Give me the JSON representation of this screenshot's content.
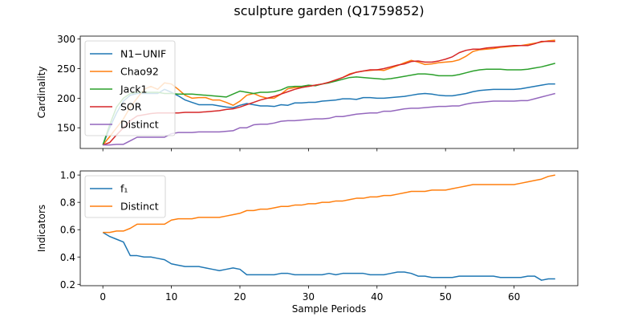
{
  "figure": {
    "title": "sculpture garden (Q1759852)"
  },
  "chart_data": [
    {
      "type": "line",
      "title": "",
      "xlabel": "",
      "ylabel": "Cardinality",
      "xlim": [
        -3.3,
        69.3
      ],
      "ylim": [
        115,
        305
      ],
      "xticks": [
        0,
        10,
        20,
        30,
        40,
        50,
        60
      ],
      "yticks": [
        150,
        200,
        250,
        300
      ],
      "show_xticklabels": false,
      "grid": false,
      "legend": "upper-left",
      "series": [
        {
          "name": "N1−UNIF",
          "color": "#1f77b4",
          "x_start": 0,
          "values": [
            121,
            150,
            175,
            195,
            205,
            208,
            208,
            208,
            208,
            215,
            210,
            204,
            197,
            193,
            189,
            189,
            189,
            187,
            185,
            184,
            188,
            191,
            189,
            187,
            187,
            186,
            189,
            188,
            192,
            192,
            193,
            193,
            195,
            196,
            197,
            199,
            199,
            198,
            201,
            201,
            200,
            200,
            201,
            202,
            203,
            205,
            207,
            208,
            207,
            205,
            204,
            204,
            206,
            208,
            211,
            213,
            214,
            215,
            215,
            215,
            215,
            216,
            218,
            220,
            222,
            224,
            224
          ]
        },
        {
          "name": "Chao92",
          "color": "#ff7f0e",
          "x_start": 0,
          "values": [
            121,
            135,
            150,
            165,
            185,
            200,
            215,
            220,
            215,
            226,
            224,
            215,
            205,
            200,
            201,
            201,
            197,
            197,
            193,
            188,
            195,
            205,
            208,
            203,
            200,
            200,
            207,
            216,
            218,
            219,
            220,
            222,
            224,
            227,
            231,
            235,
            241,
            244,
            246,
            247,
            248,
            247,
            251,
            255,
            260,
            264,
            261,
            257,
            258,
            260,
            261,
            262,
            265,
            271,
            279,
            282,
            283,
            284,
            286,
            287,
            288,
            289,
            291,
            293,
            295,
            297,
            298
          ]
        },
        {
          "name": "Jack1",
          "color": "#2ca02c",
          "x_start": 0,
          "values": [
            121,
            155,
            185,
            200,
            208,
            210,
            210,
            210,
            210,
            208,
            208,
            207,
            207,
            207,
            206,
            205,
            204,
            203,
            202,
            207,
            212,
            210,
            208,
            210,
            210,
            211,
            214,
            219,
            220,
            220,
            222,
            221,
            224,
            226,
            229,
            232,
            235,
            236,
            235,
            234,
            233,
            232,
            233,
            235,
            237,
            239,
            241,
            241,
            240,
            238,
            238,
            238,
            240,
            243,
            246,
            248,
            249,
            249,
            249,
            248,
            248,
            248,
            249,
            251,
            253,
            256,
            259
          ]
        },
        {
          "name": "SOR",
          "color": "#d62728",
          "x_start": 0,
          "values": [
            121,
            125,
            138,
            150,
            162,
            170,
            172,
            174,
            175,
            175,
            175,
            175,
            176,
            176,
            176,
            177,
            178,
            179,
            181,
            182,
            185,
            189,
            193,
            197,
            200,
            203,
            207,
            211,
            215,
            218,
            220,
            222,
            224,
            227,
            231,
            235,
            240,
            244,
            246,
            248,
            248,
            250,
            253,
            256,
            258,
            262,
            263,
            261,
            261,
            263,
            266,
            270,
            277,
            281,
            283,
            283,
            285,
            286,
            287,
            288,
            289,
            289,
            289,
            292,
            296,
            296,
            296
          ]
        },
        {
          "name": "Distinct",
          "color": "#9467bd",
          "x_start": 0,
          "values": [
            121,
            121,
            122,
            122,
            128,
            134,
            134,
            134,
            134,
            134,
            140,
            142,
            142,
            142,
            143,
            143,
            143,
            143,
            144,
            145,
            150,
            150,
            155,
            156,
            156,
            158,
            161,
            162,
            162,
            163,
            164,
            165,
            165,
            166,
            169,
            169,
            171,
            173,
            174,
            175,
            175,
            178,
            178,
            180,
            182,
            183,
            183,
            184,
            185,
            186,
            186,
            187,
            187,
            190,
            192,
            193,
            194,
            195,
            195,
            195,
            195,
            196,
            196,
            199,
            202,
            205,
            208
          ]
        }
      ]
    },
    {
      "type": "line",
      "title": "",
      "xlabel": "Sample Periods",
      "ylabel": "Indicators",
      "xlim": [
        -3.3,
        69.3
      ],
      "ylim": [
        0.19,
        1.03
      ],
      "xticks": [
        0,
        10,
        20,
        30,
        40,
        50,
        60
      ],
      "yticks": [
        0.2,
        0.4,
        0.6,
        0.8,
        1.0
      ],
      "show_xticklabels": true,
      "grid": false,
      "legend": "upper-left",
      "series": [
        {
          "name": "f₁",
          "color": "#1f77b4",
          "x_start": 0,
          "values": [
            0.58,
            0.55,
            0.53,
            0.51,
            0.41,
            0.41,
            0.4,
            0.4,
            0.39,
            0.38,
            0.35,
            0.34,
            0.33,
            0.33,
            0.33,
            0.32,
            0.31,
            0.3,
            0.31,
            0.32,
            0.31,
            0.27,
            0.27,
            0.27,
            0.27,
            0.27,
            0.28,
            0.28,
            0.27,
            0.27,
            0.27,
            0.27,
            0.27,
            0.28,
            0.27,
            0.28,
            0.28,
            0.28,
            0.28,
            0.27,
            0.27,
            0.27,
            0.28,
            0.29,
            0.29,
            0.28,
            0.26,
            0.26,
            0.25,
            0.25,
            0.25,
            0.25,
            0.26,
            0.26,
            0.26,
            0.26,
            0.26,
            0.26,
            0.25,
            0.25,
            0.25,
            0.25,
            0.26,
            0.26,
            0.23,
            0.24,
            0.24
          ]
        },
        {
          "name": "Distinct",
          "color": "#ff7f0e",
          "x_start": 0,
          "values": [
            0.58,
            0.58,
            0.59,
            0.59,
            0.61,
            0.64,
            0.64,
            0.64,
            0.64,
            0.64,
            0.67,
            0.68,
            0.68,
            0.68,
            0.69,
            0.69,
            0.69,
            0.69,
            0.7,
            0.71,
            0.72,
            0.74,
            0.74,
            0.75,
            0.75,
            0.76,
            0.77,
            0.77,
            0.78,
            0.78,
            0.79,
            0.79,
            0.8,
            0.8,
            0.81,
            0.81,
            0.82,
            0.83,
            0.83,
            0.84,
            0.84,
            0.85,
            0.85,
            0.86,
            0.87,
            0.88,
            0.88,
            0.88,
            0.89,
            0.89,
            0.89,
            0.9,
            0.91,
            0.92,
            0.93,
            0.93,
            0.93,
            0.93,
            0.93,
            0.93,
            0.93,
            0.94,
            0.95,
            0.96,
            0.97,
            0.99,
            1.0
          ]
        }
      ]
    }
  ]
}
